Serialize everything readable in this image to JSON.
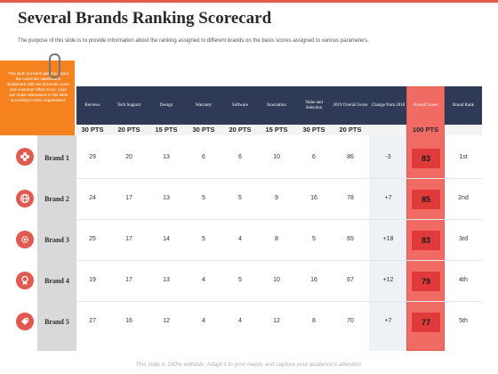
{
  "title": "Several Brands Ranking Scorecard",
  "subtitle": "The purpose of this slide is to provide information about the ranking assigned to different brands on the basis scores assigned to various parameters.",
  "note": "This slide provides glimpse about the customer satisfaction dashboard with net promoter score and customer effort score. User can make alterations in this slide according to their requirement.",
  "headers": [
    "Reviews",
    "Tech Support",
    "Design",
    "Warranty",
    "Software",
    "Innovation",
    "Value and Selection",
    "2019 Overall Score",
    "Change from 2018",
    "Overall Score",
    "Brand Rank"
  ],
  "points": [
    "30 PTS",
    "20 PTS",
    "15 PTS",
    "30 PTS",
    "20 PTS",
    "15 PTS",
    "30 PTS",
    "20 PTS",
    "",
    "100 PTS",
    ""
  ],
  "brands": [
    {
      "name": "Brand 1",
      "values": [
        "29",
        "20",
        "13",
        "6",
        "6",
        "10",
        "6",
        "86",
        "-3"
      ],
      "score": "83",
      "rank": "1st",
      "icon": "flower-icon"
    },
    {
      "name": "Brand 2",
      "values": [
        "24",
        "17",
        "13",
        "5",
        "5",
        "9",
        "16",
        "78",
        "+7"
      ],
      "score": "85",
      "rank": "2nd",
      "icon": "globe-icon"
    },
    {
      "name": "Brand 3",
      "values": [
        "25",
        "17",
        "14",
        "5",
        "4",
        "8",
        "5",
        "65",
        "+18"
      ],
      "score": "83",
      "rank": "3rd",
      "icon": "gear-icon"
    },
    {
      "name": "Brand 4",
      "values": [
        "19",
        "17",
        "13",
        "4",
        "5",
        "10",
        "16",
        "67",
        "+12"
      ],
      "score": "79",
      "rank": "4th",
      "icon": "award-icon"
    },
    {
      "name": "Brand 5",
      "values": [
        "27",
        "16",
        "12",
        "4",
        "4",
        "12",
        "8",
        "70",
        "+7"
      ],
      "score": "77",
      "rank": "5th",
      "icon": "tag-icon"
    }
  ],
  "footer": "This slide is 100% editable. Adapt it to your needs and capture your audience's attention.",
  "colors": {
    "accent": "#e05a4f",
    "header": "#2f3a56",
    "note": "#f5821f",
    "score": "#e13a3a"
  }
}
